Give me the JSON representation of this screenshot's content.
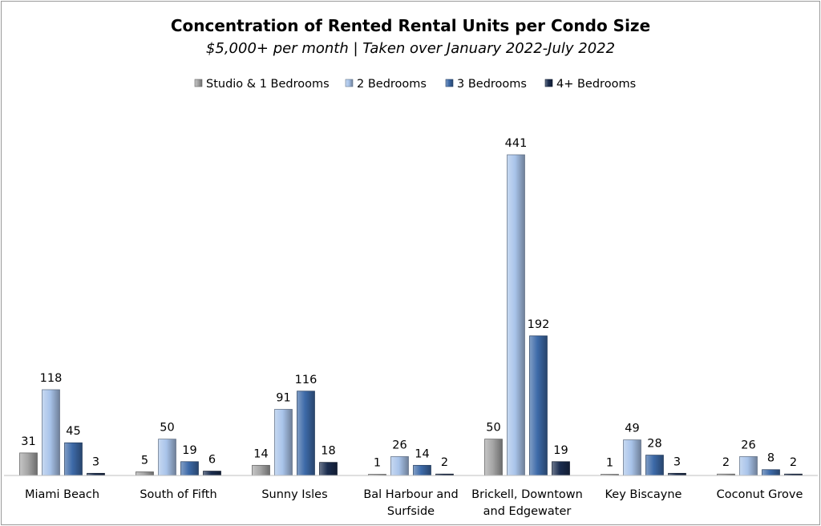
{
  "chart_data": {
    "type": "bar",
    "title": "Concentration of Rented Rental Units per Condo Size",
    "subtitle": "$5,000+ per month | Taken over January 2022-July 2022",
    "categories": [
      [
        "Miami Beach"
      ],
      [
        "South of Fifth"
      ],
      [
        "Sunny Isles"
      ],
      [
        "Bal Harbour and",
        "Surfside"
      ],
      [
        "Brickell, Downtown",
        "and Edgewater"
      ],
      [
        "Key Biscayne"
      ],
      [
        "Coconut Grove"
      ]
    ],
    "series": [
      {
        "name": "Studio & 1 Bedrooms",
        "color": "#a6a6a6",
        "values": [
          31,
          5,
          14,
          1,
          50,
          1,
          2
        ]
      },
      {
        "name": "2 Bedrooms",
        "color": "#a9c4ea",
        "values": [
          118,
          50,
          91,
          26,
          441,
          49,
          26
        ]
      },
      {
        "name": "3 Bedrooms",
        "color": "#3d6aa8",
        "values": [
          45,
          19,
          116,
          14,
          192,
          28,
          8
        ]
      },
      {
        "name": "4+ Bedrooms",
        "color": "#1b2d4f",
        "values": [
          3,
          6,
          18,
          2,
          19,
          3,
          2
        ]
      }
    ],
    "xlabel": "",
    "ylabel": "",
    "ylim": [
      0,
      441
    ],
    "grid": false,
    "legend_position": "top-center",
    "data_labels": true
  }
}
